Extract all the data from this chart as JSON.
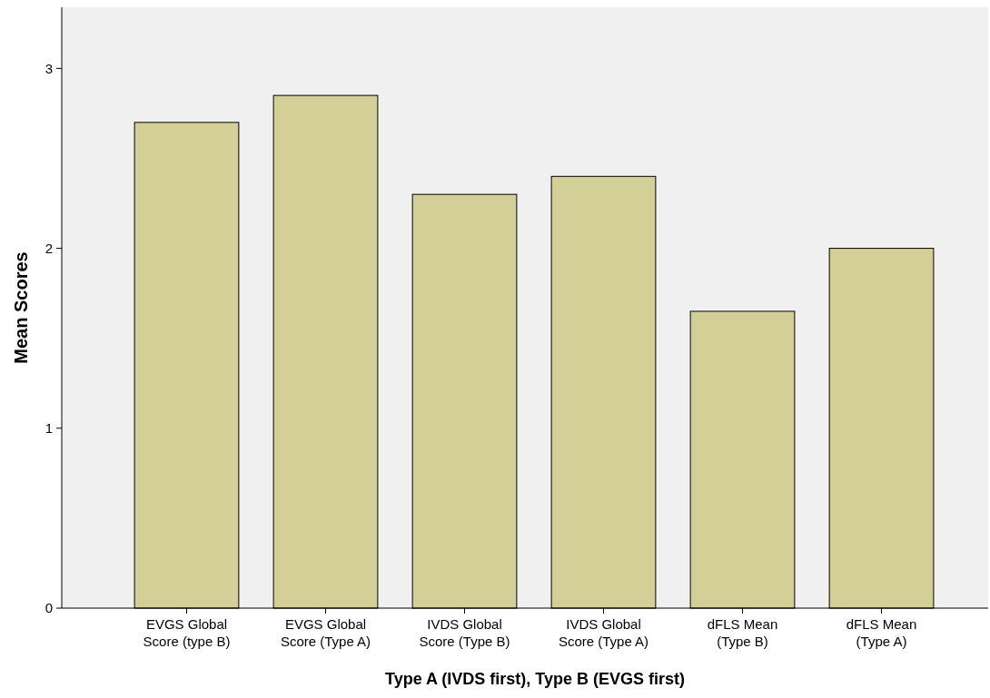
{
  "chart_data": {
    "type": "bar",
    "xlabel": "Type A (IVDS first), Type B (EVGS first)",
    "ylabel": "Mean Scores",
    "categories": [
      "EVGS Global Score (type B)",
      "EVGS Global Score (Type A)",
      "IVDS Global Score (Type B)",
      "IVDS Global Score (Type A)",
      "dFLS Mean (Type B)",
      "dFLS Mean (Type A)"
    ],
    "values": [
      2.7,
      2.85,
      2.3,
      2.4,
      1.65,
      2.0
    ],
    "color": "#d3cf97",
    "ylim": [
      0,
      3.34
    ],
    "yticks": [
      0,
      1,
      2,
      3
    ],
    "grid": false
  }
}
